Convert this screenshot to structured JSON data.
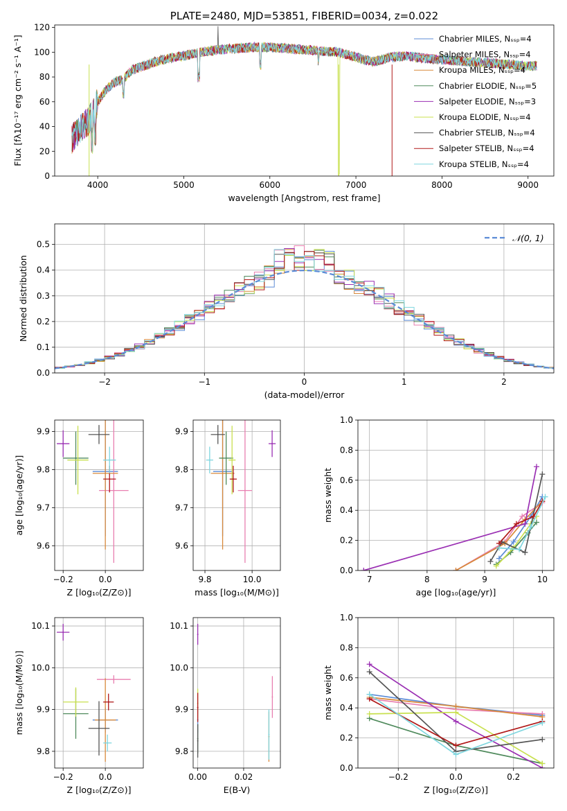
{
  "palette": [
    "#5b8bd6",
    "#e87fb0",
    "#d8893a",
    "#4f8a5c",
    "#9a2fb3",
    "#c8e04e",
    "#555555",
    "#b01818",
    "#7fd6df"
  ],
  "chart_data": [
    {
      "type": "line",
      "title": "PLATE=2480, MJD=53851, FIBERID=0034, z=0.022",
      "xlabel": "wavelength [Angstrom, rest frame]",
      "ylabel": "Flux [fλ10⁻¹⁷ erg cm⁻² s⁻¹ A⁻¹]",
      "xlim": [
        3500,
        9300
      ],
      "ylim": [
        0,
        122
      ],
      "xticks": [
        4000,
        5000,
        6000,
        7000,
        8000,
        9000
      ],
      "yticks": [
        0,
        20,
        40,
        60,
        80,
        100,
        120
      ],
      "legend": "top-right",
      "series": [
        {
          "name": "Chabrier MILES, Nₛₛₚ=4"
        },
        {
          "name": "Salpeter MILES, Nₛₛₚ=4"
        },
        {
          "name": "Kroupa MILES, Nₛₛₚ=4"
        },
        {
          "name": "Chabrier ELODIE, Nₛₛₚ=5"
        },
        {
          "name": "Salpeter ELODIE, Nₛₛₚ=3"
        },
        {
          "name": "Kroupa ELODIE, Nₛₛₚ=4"
        },
        {
          "name": "Chabrier STELIB, Nₛₛₚ=4"
        },
        {
          "name": "Salpeter STELIB, Nₛₛₚ=4"
        },
        {
          "name": "Kroupa STELIB, Nₛₛₚ=4"
        }
      ],
      "continuum": {
        "x": [
          3700,
          3800,
          3900,
          4000,
          4100,
          4200,
          4300,
          4400,
          4500,
          4700,
          4900,
          5000,
          5200,
          5400,
          5600,
          5800,
          6000,
          6200,
          6400,
          6600,
          6800,
          7000,
          7200,
          7400,
          7600,
          7800,
          8000,
          8200,
          8400,
          8600,
          8800,
          9000,
          9100
        ],
        "y": [
          30,
          38,
          45,
          60,
          70,
          76,
          78,
          86,
          88,
          93,
          96,
          97,
          100,
          102,
          103,
          104,
          104,
          103,
          102,
          101,
          100,
          96,
          92,
          96,
          97,
          95,
          94,
          93,
          92,
          91,
          90,
          89,
          89
        ]
      },
      "dropouts": [
        {
          "x": 3900,
          "y": 0
        },
        {
          "x": 6800,
          "y": 0
        },
        {
          "x": 7420,
          "y": 0
        }
      ]
    },
    {
      "type": "histogram",
      "xlabel": "(data-model)/error",
      "ylabel": "Normed distribution",
      "xlim": [
        -2.5,
        2.5
      ],
      "ylim": [
        0,
        0.58
      ],
      "xticks": [
        -2,
        -1,
        0,
        1,
        2
      ],
      "yticks": [
        0.0,
        0.1,
        0.2,
        0.3,
        0.4,
        0.5
      ],
      "legend": "top-right",
      "reference": {
        "name": "𝒩(0, 1)",
        "mean": 0,
        "sigma": 1
      },
      "bin_width": 0.1
    },
    {
      "type": "scatter",
      "xlabel": "Z [log₁₀(Z/Z⊙)]",
      "ylabel": "age  [log₁₀(age/yr)]",
      "xlim": [
        -0.24,
        0.18
      ],
      "ylim": [
        9.535,
        9.93
      ],
      "xticks": [
        -0.2,
        0.0
      ],
      "yticks": [
        9.6,
        9.7,
        9.8,
        9.9
      ],
      "points": [
        {
          "x": 0.0,
          "y": 9.795,
          "xerr": 0.06,
          "yerr": 0.17
        },
        {
          "x": 0.04,
          "y": 9.745,
          "xerr": 0.07,
          "yerr": 0.19
        },
        {
          "x": 0.0,
          "y": 9.79,
          "xerr": 0.06,
          "yerr": 0.2
        },
        {
          "x": -0.14,
          "y": 9.83,
          "xerr": 0.06,
          "yerr": 0.07
        },
        {
          "x": -0.2,
          "y": 9.868,
          "xerr": 0.03,
          "yerr": 0.035
        },
        {
          "x": -0.13,
          "y": 9.825,
          "xerr": 0.05,
          "yerr": 0.09
        },
        {
          "x": -0.03,
          "y": 9.892,
          "xerr": 0.05,
          "yerr": 0.025
        },
        {
          "x": 0.02,
          "y": 9.775,
          "xerr": 0.03,
          "yerr": 0.035
        },
        {
          "x": 0.02,
          "y": 9.825,
          "xerr": 0.03,
          "yerr": 0.035
        }
      ]
    },
    {
      "type": "scatter",
      "xlabel": "mass [log₁₀(M/M⊙)]",
      "xlim": [
        9.75,
        10.12
      ],
      "ylim": [
        9.535,
        9.93
      ],
      "xticks": [
        9.8,
        10.0
      ],
      "yticks": [
        9.6,
        9.7,
        9.8,
        9.9
      ],
      "points": [
        {
          "x": 9.875,
          "y": 9.795,
          "xerr": 0.04,
          "yerr": 0.17
        },
        {
          "x": 9.97,
          "y": 9.745,
          "xerr": 0.03,
          "yerr": 0.19
        },
        {
          "x": 9.875,
          "y": 9.79,
          "xerr": 0.05,
          "yerr": 0.2
        },
        {
          "x": 9.89,
          "y": 9.83,
          "xerr": 0.03,
          "yerr": 0.07
        },
        {
          "x": 10.085,
          "y": 9.868,
          "xerr": 0.015,
          "yerr": 0.035
        },
        {
          "x": 9.915,
          "y": 9.825,
          "xerr": 0.015,
          "yerr": 0.09
        },
        {
          "x": 9.855,
          "y": 9.892,
          "xerr": 0.03,
          "yerr": 0.025
        },
        {
          "x": 9.92,
          "y": 9.775,
          "xerr": 0.015,
          "yerr": 0.035
        },
        {
          "x": 9.82,
          "y": 9.825,
          "xerr": 0.015,
          "yerr": 0.035
        }
      ]
    },
    {
      "type": "line",
      "xlabel": "age  [log₁₀(age/yr)]",
      "ylabel": "mass weight",
      "xlim": [
        6.8,
        10.2
      ],
      "ylim": [
        0,
        1.0
      ],
      "xticks": [
        7,
        8,
        9,
        10
      ],
      "yticks": [
        0.0,
        0.2,
        0.4,
        0.6,
        0.8,
        1.0
      ],
      "series": [
        {
          "x": [
            9.25,
            9.5,
            9.8,
            10.0
          ],
          "y": [
            0.08,
            0.19,
            0.36,
            0.49
          ]
        },
        {
          "x": [
            8.5,
            9.35,
            9.65,
            10.0
          ],
          "y": [
            0.0,
            0.19,
            0.36,
            0.45
          ]
        },
        {
          "x": [
            8.5,
            9.35,
            9.7,
            10.0
          ],
          "y": [
            0.0,
            0.18,
            0.34,
            0.46
          ]
        },
        {
          "x": [
            9.2,
            9.45,
            9.75,
            9.9
          ],
          "y": [
            0.04,
            0.12,
            0.25,
            0.32
          ]
        },
        {
          "x": [
            6.9,
            9.7,
            9.9
          ],
          "y": [
            0.0,
            0.31,
            0.69
          ]
        },
        {
          "x": [
            9.2,
            9.5,
            9.8,
            9.9
          ],
          "y": [
            0.03,
            0.15,
            0.31,
            0.36
          ]
        },
        {
          "x": [
            9.1,
            9.3,
            9.7,
            10.0
          ],
          "y": [
            0.06,
            0.19,
            0.12,
            0.64
          ]
        },
        {
          "x": [
            9.25,
            9.55,
            9.85,
            10.0
          ],
          "y": [
            0.18,
            0.31,
            0.36,
            0.46
          ]
        },
        {
          "x": [
            9.25,
            9.6,
            9.8,
            10.05
          ],
          "y": [
            0.15,
            0.14,
            0.29,
            0.49
          ]
        }
      ]
    },
    {
      "type": "scatter",
      "xlabel": "Z [log₁₀(Z/Z⊙)]",
      "ylabel": "mass [log₁₀(M/M⊙)]",
      "xlim": [
        -0.24,
        0.18
      ],
      "ylim": [
        9.76,
        10.12
      ],
      "xticks": [
        -0.2,
        0.0
      ],
      "yticks": [
        9.8,
        9.9,
        10.0,
        10.1
      ],
      "points": [
        {
          "x": 0.0,
          "y": 9.875,
          "xerr": 0.06,
          "yerr": 0.03
        },
        {
          "x": 0.04,
          "y": 9.972,
          "xerr": 0.08,
          "yerr": 0.01
        },
        {
          "x": 0.0,
          "y": 9.875,
          "xerr": 0.05,
          "yerr": 0.1
        },
        {
          "x": -0.14,
          "y": 9.89,
          "xerr": 0.06,
          "yerr": 0.06
        },
        {
          "x": -0.2,
          "y": 10.085,
          "xerr": 0.03,
          "yerr": 0.02
        },
        {
          "x": -0.14,
          "y": 9.918,
          "xerr": 0.06,
          "yerr": 0.035
        },
        {
          "x": -0.03,
          "y": 9.855,
          "xerr": 0.05,
          "yerr": 0.065
        },
        {
          "x": 0.015,
          "y": 9.918,
          "xerr": 0.025,
          "yerr": 0.02
        },
        {
          "x": 0.01,
          "y": 9.82,
          "xerr": 0.02,
          "yerr": 0.02
        }
      ]
    },
    {
      "type": "scatter",
      "xlabel": "E(B-V)",
      "xlim": [
        -0.002,
        0.036
      ],
      "ylim": [
        9.76,
        10.12
      ],
      "xticks": [
        0.0,
        0.02
      ],
      "yticks": [
        9.8,
        9.9,
        10.0,
        10.1
      ],
      "points": [
        {
          "x": 0.0,
          "y": 9.875,
          "yerr": 0.03
        },
        {
          "x": 0.0325,
          "y": 9.93,
          "yerr": 0.05
        },
        {
          "x": 0.031,
          "y": 9.835,
          "yerr": 0.06
        },
        {
          "x": 0.0,
          "y": 9.83,
          "yerr": 0.035
        },
        {
          "x": 0.0,
          "y": 10.08,
          "yerr": 0.025
        },
        {
          "x": 0.0,
          "y": 9.915,
          "yerr": 0.035
        },
        {
          "x": 0.0,
          "y": 9.825,
          "yerr": 0.04
        },
        {
          "x": 0.0,
          "y": 9.905,
          "yerr": 0.035
        },
        {
          "x": 0.031,
          "y": 9.84,
          "yerr": 0.06
        }
      ]
    },
    {
      "type": "line",
      "xlabel": "Z [log₁₀(Z/Z⊙)]",
      "ylabel": "mass weight",
      "xlim": [
        -0.34,
        0.34
      ],
      "ylim": [
        0,
        1.0
      ],
      "xticks": [
        -0.2,
        0.0,
        0.2
      ],
      "yticks": [
        0.0,
        0.2,
        0.4,
        0.6,
        0.8,
        1.0
      ],
      "series": [
        {
          "x": [
            -0.3,
            0.0,
            0.3
          ],
          "y": [
            0.49,
            0.41,
            0.35
          ]
        },
        {
          "x": [
            -0.3,
            0.0,
            0.3
          ],
          "y": [
            0.46,
            0.39,
            0.36
          ]
        },
        {
          "x": [
            -0.3,
            0.0,
            0.3
          ],
          "y": [
            0.47,
            0.41,
            0.34
          ]
        },
        {
          "x": [
            -0.3,
            0.0,
            0.3
          ],
          "y": [
            0.33,
            0.15,
            0.03
          ]
        },
        {
          "x": [
            -0.3,
            0.0,
            0.3
          ],
          "y": [
            0.69,
            0.31,
            0.0
          ]
        },
        {
          "x": [
            -0.3,
            0.0,
            0.3
          ],
          "y": [
            0.36,
            0.37,
            0.03
          ]
        },
        {
          "x": [
            -0.3,
            0.0,
            0.3
          ],
          "y": [
            0.64,
            0.11,
            0.19
          ]
        },
        {
          "x": [
            -0.3,
            0.0,
            0.3
          ],
          "y": [
            0.46,
            0.15,
            0.31
          ]
        },
        {
          "x": [
            -0.3,
            0.0,
            0.3
          ],
          "y": [
            0.49,
            0.09,
            0.3
          ]
        }
      ]
    }
  ]
}
